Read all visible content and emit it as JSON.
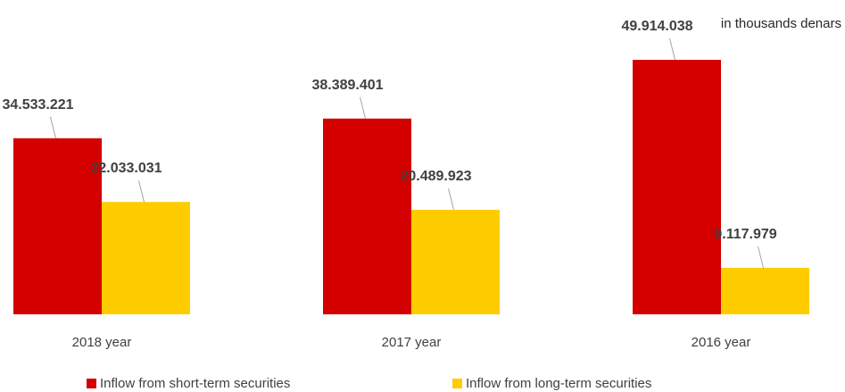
{
  "unit_label": "in thousands denars",
  "chart_data": {
    "type": "bar",
    "categories": [
      "2018 year",
      "2017 year",
      "2016 year"
    ],
    "series": [
      {
        "name": "Inflow from short-term securities",
        "color": "#d40000",
        "values": [
          34533221,
          38389401,
          49914038
        ],
        "labels": [
          "34.533.221",
          "38.389.401",
          "49.914.038"
        ]
      },
      {
        "name": "Inflow from long-term securities",
        "color": "#ffcc00",
        "values": [
          22033031,
          20489923,
          9117979
        ],
        "labels": [
          "22.033.031",
          "20.489.923",
          "9.117.979"
        ]
      }
    ],
    "ylim": [
      0,
      52000000
    ],
    "grid": false,
    "legend_position": "bottom"
  }
}
